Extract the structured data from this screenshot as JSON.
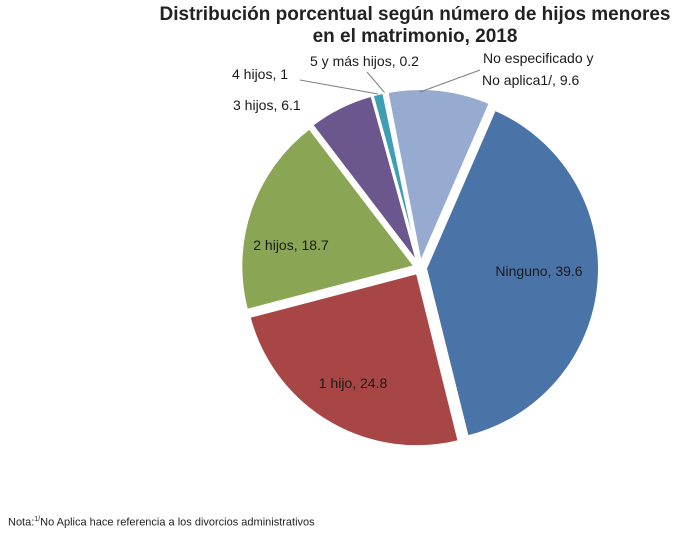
{
  "chart_data": {
    "type": "pie",
    "title_line1": "Distribución porcentual según número de hijos menores",
    "title_line2": "en el matrimonio, 2018",
    "slices": [
      {
        "name": "Ninguno",
        "value": 39.6,
        "label": "Ninguno, 39.6",
        "color": "#4a73a8"
      },
      {
        "name": "1 hijo",
        "value": 24.8,
        "label": "1 hijo, 24.8",
        "color": "#a84646"
      },
      {
        "name": "2 hijos",
        "value": 18.7,
        "label": "2 hijos, 18.7",
        "color": "#8aa654"
      },
      {
        "name": "3 hijos",
        "value": 6.1,
        "label": "3 hijos, 6.1",
        "color": "#6b568e"
      },
      {
        "name": "4 hijos",
        "value": 1,
        "label": "4 hijos, 1",
        "color": "#3e9fb2"
      },
      {
        "name": "5 y más hijos",
        "value": 0.2,
        "label": "5 y más hijos, 0.2",
        "color": "#e08a3a"
      },
      {
        "name": "No especificado y No aplica1/",
        "value": 9.6,
        "label_line1": "No especificado y",
        "label_line2": "No aplica1/, 9.6",
        "color": "#97abd0"
      }
    ]
  },
  "note": {
    "prefix": "Nota:",
    "sup": "1/",
    "text": "No Aplica hace referencia a los divorcios administrativos"
  }
}
